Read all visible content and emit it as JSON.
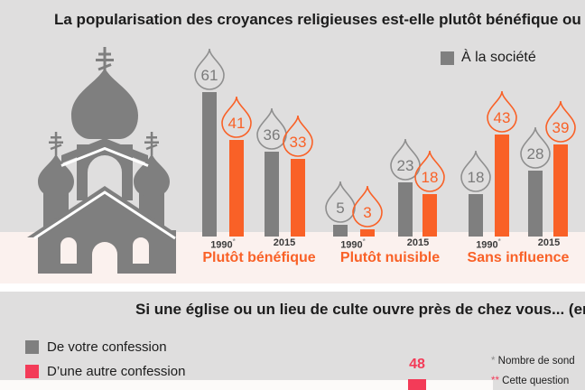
{
  "section1": {
    "title": "La popularisation des croyances religieuses est-elle plutôt bénéfique ou nui",
    "legend": [
      {
        "label": "À la société",
        "color": "#7F7F7F",
        "series": "gray"
      }
    ]
  },
  "section2": {
    "title": "Si une église ou un lieu de culte ouvre près de chez vous... (en %",
    "legend": [
      {
        "label": "De votre confession",
        "color": "#7F7F7F"
      },
      {
        "label": "D’une autre confession",
        "color": "#F33B58"
      }
    ],
    "partial_bar": {
      "value": 48,
      "series": "D’une autre confession",
      "color": "#F33B58"
    },
    "notes": [
      {
        "marker": "*",
        "text": " Nombre de sond",
        "marker_color": "#8C8C8C"
      },
      {
        "marker": "**",
        "text": " Cette question",
        "marker_color": "#F33B58"
      }
    ]
  },
  "colors": {
    "background": "#DFDEDE",
    "pink_band": "#FBF1EE",
    "gray_series": "#7F7F7F",
    "orange_series": "#F96127",
    "pink_accent": "#F33B58",
    "title_text": "#1C1C1C"
  },
  "chart_data": [
    {
      "type": "bar",
      "title": "La popularisation des croyances religieuses est-elle plutôt bénéfique ou nui",
      "unit": "%",
      "legend": [
        {
          "series": "gray",
          "label": "À la société"
        }
      ],
      "series_colors": {
        "gray": "#7F7F7F",
        "orange": "#F96127"
      },
      "categories": [
        "Plutôt bénéfique",
        "Plutôt nuisible",
        "Sans influence"
      ],
      "groups": [
        {
          "category": "Plutôt bénéfique",
          "bars": [
            {
              "year": "1990",
              "year_note": "*",
              "gray": 61,
              "orange": 41
            },
            {
              "year": "2015",
              "year_note": "",
              "gray": 36,
              "orange": 33
            }
          ]
        },
        {
          "category": "Plutôt nuisible",
          "bars": [
            {
              "year": "1990",
              "year_note": "*",
              "gray": 5,
              "orange": 3
            },
            {
              "year": "2015",
              "year_note": "",
              "gray": 23,
              "orange": 18
            }
          ]
        },
        {
          "category": "Sans influence",
          "bars": [
            {
              "year": "1990",
              "year_note": "*",
              "gray": 18,
              "orange": 43
            },
            {
              "year": "2015",
              "year_note": "",
              "gray": 28,
              "orange": 39
            }
          ]
        }
      ],
      "ylim": [
        0,
        61
      ]
    },
    {
      "type": "bar",
      "title": "Si une église ou un lieu de culte ouvre près de chez vous... (en %",
      "legend": [
        {
          "series": "gray",
          "label": "De votre confession"
        },
        {
          "series": "pink",
          "label": "D’une autre confession"
        }
      ],
      "series_colors": {
        "gray": "#7F7F7F",
        "pink": "#F33B58"
      },
      "visible_values": [
        {
          "series": "pink",
          "value": 48
        }
      ]
    }
  ]
}
